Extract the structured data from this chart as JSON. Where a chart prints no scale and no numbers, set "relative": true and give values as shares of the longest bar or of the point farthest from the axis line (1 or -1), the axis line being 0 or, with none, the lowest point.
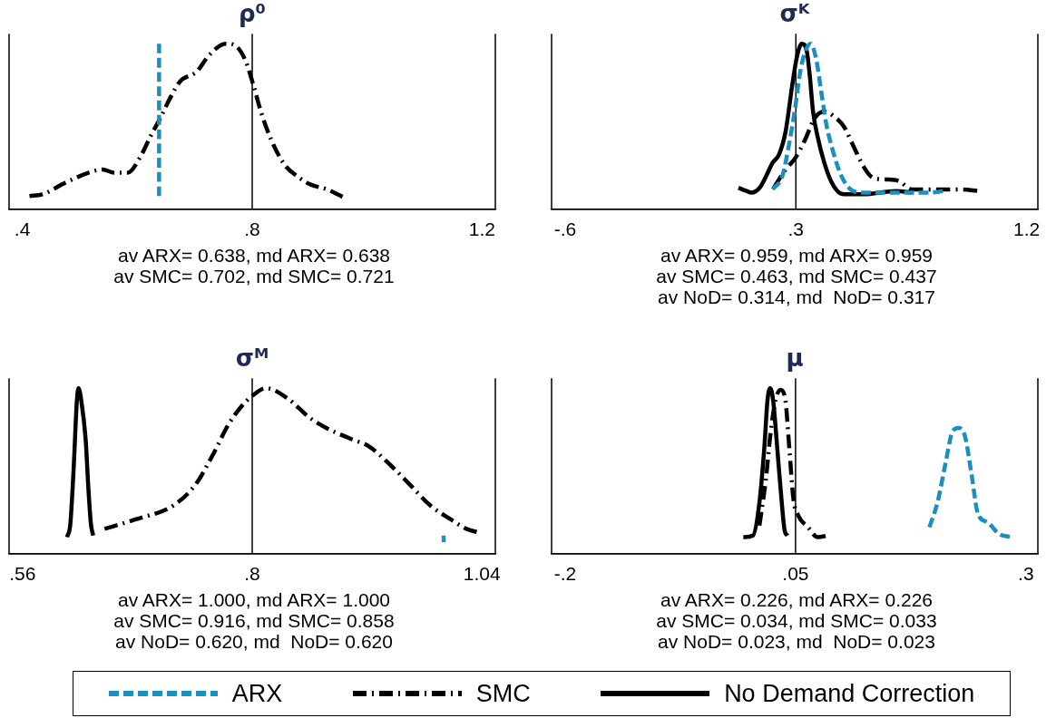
{
  "chart_data": [
    {
      "type": "line",
      "title": "ρ⁰",
      "relative": true,
      "xlim": [
        0.377,
        1.223
      ],
      "xticks": [
        {
          "value": 0.4,
          "label": ".4"
        },
        {
          "value": 0.8,
          "label": ".8"
        },
        {
          "value": 1.2,
          "label": "1.2"
        }
      ],
      "ref_lines": [
        {
          "axis": "x",
          "value": 0.8,
          "color": "#000000"
        }
      ],
      "legend": "bottom",
      "annotations": [
        "av ARX= 0.638, md ARX= 0.638",
        "av SMC= 0.702, md SMC= 0.721"
      ],
      "series": [
        {
          "name": "ARX",
          "color": "#1a8fc0",
          "line_style": "dashed",
          "x": [
            0.638,
            0.638
          ],
          "values": [
            0.08,
            1.0
          ]
        },
        {
          "name": "SMC",
          "color": "#000000",
          "line_style": "dashdot",
          "x": [
            0.4125,
            0.435,
            0.475,
            0.515,
            0.54,
            0.56,
            0.583,
            0.606,
            0.623,
            0.64,
            0.657,
            0.674,
            0.703,
            0.725,
            0.754,
            0.77,
            0.788,
            0.802,
            0.816,
            0.833,
            0.856,
            0.878,
            0.901,
            0.93,
            0.96
          ],
          "values": [
            0.08,
            0.09,
            0.16,
            0.22,
            0.24,
            0.22,
            0.22,
            0.32,
            0.44,
            0.55,
            0.67,
            0.77,
            0.83,
            0.93,
            1.0,
            0.99,
            0.9,
            0.75,
            0.58,
            0.42,
            0.27,
            0.2,
            0.15,
            0.12,
            0.07
          ]
        }
      ]
    },
    {
      "type": "line",
      "title": "σᴷ",
      "relative": true,
      "xlim": [
        -0.653,
        1.244
      ],
      "xticks": [
        {
          "value": -0.6,
          "label": "-.6"
        },
        {
          "value": 0.3,
          "label": ".3"
        },
        {
          "value": 1.2,
          "label": "1.2"
        }
      ],
      "ref_lines": [
        {
          "axis": "x",
          "value": 0.3,
          "color": "#000000"
        }
      ],
      "legend": "bottom",
      "annotations": [
        "av ARX= 0.959, md ARX= 0.959",
        "av SMC= 0.463, md SMC= 0.437",
        "av NoD= 0.314, md  NoD= 0.317"
      ],
      "series": [
        {
          "name": "ARX",
          "color": "#1a8fc0",
          "line_style": "dashed",
          "x": [
            0.209,
            0.247,
            0.272,
            0.298,
            0.317,
            0.336,
            0.358,
            0.38,
            0.399,
            0.418,
            0.443,
            0.475,
            0.513,
            0.563,
            0.69,
            0.816,
            0.879
          ],
          "values": [
            0.12,
            0.2,
            0.38,
            0.62,
            0.83,
            0.95,
            1.0,
            0.9,
            0.71,
            0.52,
            0.36,
            0.21,
            0.12,
            0.1,
            0.1,
            0.1,
            0.11
          ]
        },
        {
          "name": "SMC",
          "color": "#000000",
          "line_style": "dashdot",
          "x": [
            0.214,
            0.26,
            0.298,
            0.336,
            0.373,
            0.411,
            0.449,
            0.487,
            0.525,
            0.563,
            0.601,
            0.652,
            0.702,
            0.753,
            0.816,
            0.879,
            0.942,
            1.012
          ],
          "values": [
            0.13,
            0.24,
            0.31,
            0.42,
            0.55,
            0.59,
            0.56,
            0.5,
            0.38,
            0.26,
            0.19,
            0.18,
            0.17,
            0.12,
            0.12,
            0.12,
            0.12,
            0.11
          ]
        },
        {
          "name": "No Demand Correction",
          "color": "#000000",
          "line_style": "solid",
          "x": [
            0.076,
            0.108,
            0.127,
            0.159,
            0.184,
            0.209,
            0.234,
            0.26,
            0.285,
            0.304,
            0.323,
            0.342,
            0.354,
            0.367,
            0.386,
            0.411,
            0.437,
            0.462,
            0.487,
            0.563,
            0.69,
            0.753
          ],
          "values": [
            0.13,
            0.11,
            0.1,
            0.13,
            0.2,
            0.28,
            0.33,
            0.47,
            0.74,
            0.92,
            1.0,
            0.96,
            0.81,
            0.59,
            0.43,
            0.28,
            0.17,
            0.11,
            0.09,
            0.09,
            0.11,
            0.1
          ]
        }
      ]
    },
    {
      "type": "line",
      "title": "σᴹ",
      "relative": true,
      "xlim": [
        0.546,
        1.054
      ],
      "xticks": [
        {
          "value": 0.56,
          "label": ".56"
        },
        {
          "value": 0.8,
          "label": ".8"
        },
        {
          "value": 1.04,
          "label": "1.04"
        }
      ],
      "ref_lines": [
        {
          "axis": "x",
          "value": 0.8,
          "color": "#000000"
        }
      ],
      "legend": "bottom",
      "annotations": [
        "av ARX= 1.000, md ARX= 1.000",
        "av SMC= 0.916, md SMC= 0.858",
        "av NoD= 0.620, md  NoD= 0.620"
      ],
      "series": [
        {
          "name": "ARX",
          "color": "#1a8fc0",
          "line_style": "dashed",
          "x": [
            1.0,
            1.0
          ],
          "values": [
            0.07,
            0.11
          ]
        },
        {
          "name": "SMC",
          "color": "#000000",
          "line_style": "dashdot",
          "x": [
            0.6458,
            0.6798,
            0.7173,
            0.7411,
            0.7582,
            0.7752,
            0.7888,
            0.7993,
            0.8143,
            0.8365,
            0.8603,
            0.8773,
            0.9046,
            0.9216,
            0.9454,
            0.9659,
            0.9863,
            1.0067,
            1.0238,
            1.0357
          ],
          "values": [
            0.15,
            0.21,
            0.29,
            0.42,
            0.59,
            0.78,
            0.89,
            0.95,
            1.0,
            0.94,
            0.82,
            0.76,
            0.69,
            0.65,
            0.53,
            0.41,
            0.29,
            0.21,
            0.15,
            0.13
          ]
        },
        {
          "name": "No Demand Correction",
          "color": "#000000",
          "line_style": "solid",
          "x": [
            0.6066,
            0.61,
            0.6135,
            0.6169,
            0.6186,
            0.6213,
            0.626,
            0.6288,
            0.6315,
            0.6339
          ],
          "values": [
            0.1,
            0.18,
            0.52,
            0.93,
            1.0,
            0.93,
            0.69,
            0.4,
            0.18,
            0.11
          ]
        }
      ]
    },
    {
      "type": "line",
      "title": "μ",
      "relative": true,
      "xlim": [
        -0.2148,
        0.313
      ],
      "xticks": [
        {
          "value": -0.2,
          "label": "-.2"
        },
        {
          "value": 0.05,
          "label": ".05"
        },
        {
          "value": 0.3,
          "label": ".3"
        }
      ],
      "ref_lines": [
        {
          "axis": "x",
          "value": 0.05,
          "color": "#000000"
        }
      ],
      "legend": "bottom",
      "annotations": [
        "av ARX= 0.226, md ARX= 0.226",
        "av SMC= 0.034, md SMC= 0.033",
        "av NoD= 0.023, md  NoD= 0.023"
      ],
      "series": [
        {
          "name": "ARX",
          "color": "#1a8fc0",
          "line_style": "dashed",
          "x": [
            0.1953,
            0.2041,
            0.2129,
            0.2199,
            0.2269,
            0.2339,
            0.241,
            0.248,
            0.2585,
            0.2708,
            0.2849
          ],
          "values": [
            0.16,
            0.31,
            0.55,
            0.73,
            0.76,
            0.71,
            0.48,
            0.24,
            0.19,
            0.12,
            0.1
          ]
        },
        {
          "name": "SMC",
          "color": "#000000",
          "line_style": "dashdot",
          "x": [
            0.0108,
            0.0178,
            0.0231,
            0.0284,
            0.0337,
            0.0389,
            0.0432,
            0.0477,
            0.053,
            0.0635,
            0.0741,
            0.0846
          ],
          "values": [
            0.17,
            0.45,
            0.74,
            0.93,
            0.99,
            0.93,
            0.64,
            0.33,
            0.23,
            0.16,
            0.1,
            0.11
          ]
        },
        {
          "name": "No Demand Correction",
          "color": "#000000",
          "line_style": "solid",
          "x": [
            -0.0067,
            0.0038,
            0.0108,
            0.0161,
            0.0196,
            0.0224,
            0.0256,
            0.0301,
            0.0347,
            0.0382,
            0.0414
          ],
          "values": [
            0.1,
            0.11,
            0.31,
            0.64,
            0.93,
            1.0,
            0.93,
            0.64,
            0.33,
            0.14,
            0.11
          ]
        }
      ]
    }
  ]
}
